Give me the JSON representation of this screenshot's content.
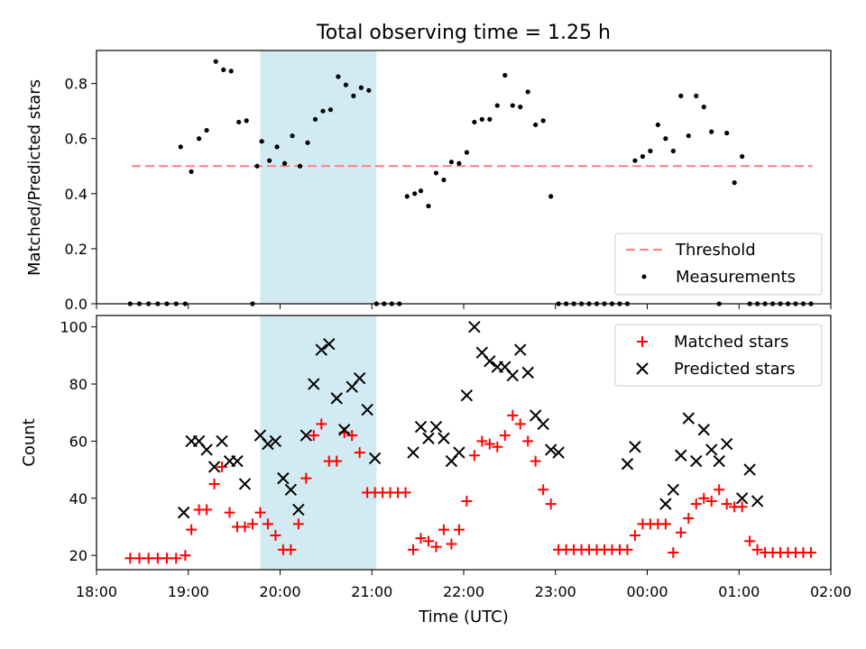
{
  "title": "Total observing time = 1.25 h",
  "chart_data": [
    {
      "type": "scatter",
      "panel": "top",
      "title": "Total observing time = 1.25 h",
      "xlabel": "",
      "ylabel": "Matched/Predicted stars",
      "xlim": [
        "18:00",
        "02:00"
      ],
      "ylim": [
        0,
        0.92
      ],
      "yticks": [
        "0.0",
        "0.2",
        "0.4",
        "0.6",
        "0.8"
      ],
      "yticks_values": [
        0,
        0.2,
        0.4,
        0.6,
        0.8
      ],
      "shaded_region": {
        "start": "19:47",
        "end": "21:03",
        "color": "#add8e6"
      },
      "threshold": {
        "name": "Threshold",
        "value": 0.5,
        "start": "18:23",
        "end": "01:48",
        "color": "#ff7f7f",
        "style": "dashed"
      },
      "series": [
        {
          "name": "Measurements",
          "color": "#000000",
          "marker": "dot",
          "x": [
            "18:22",
            "18:28",
            "18:34",
            "18:40",
            "18:46",
            "18:52",
            "18:58",
            "18:55",
            "19:02",
            "19:07",
            "19:12",
            "19:18",
            "19:23",
            "19:28",
            "19:33",
            "19:38",
            "19:42",
            "19:45",
            "19:48",
            "19:53",
            "19:58",
            "20:03",
            "20:08",
            "20:13",
            "20:18",
            "20:23",
            "20:28",
            "20:33",
            "20:38",
            "20:43",
            "20:48",
            "20:53",
            "20:58",
            "21:03",
            "21:08",
            "21:13",
            "21:18",
            "21:23",
            "21:28",
            "21:32",
            "21:37",
            "21:42",
            "21:47",
            "21:52",
            "21:57",
            "22:02",
            "22:07",
            "22:12",
            "22:17",
            "22:22",
            "22:27",
            "22:32",
            "22:37",
            "22:42",
            "22:47",
            "22:52",
            "22:57",
            "23:02",
            "23:07",
            "23:12",
            "23:17",
            "23:22",
            "23:27",
            "23:32",
            "23:37",
            "23:42",
            "23:47",
            "23:52",
            "23:57",
            "00:02",
            "00:07",
            "00:12",
            "00:17",
            "00:22",
            "00:27",
            "00:32",
            "00:37",
            "00:42",
            "00:47",
            "00:52",
            "00:57",
            "01:02",
            "01:07",
            "01:12",
            "01:17",
            "01:22",
            "01:27",
            "01:32",
            "01:37",
            "01:42",
            "01:47"
          ],
          "y": [
            0,
            0,
            0,
            0,
            0,
            0,
            0,
            0.57,
            0.48,
            0.6,
            0.63,
            0.88,
            0.85,
            0.845,
            0.66,
            0.665,
            0,
            0.5,
            0.59,
            0.52,
            0.57,
            0.51,
            0.61,
            0.5,
            0.585,
            0.67,
            0.7,
            0.705,
            0.825,
            0.795,
            0.755,
            0.785,
            0.775,
            0,
            0,
            0,
            0,
            0.39,
            0.4,
            0.41,
            0.355,
            0.475,
            0.45,
            0.515,
            0.51,
            0.55,
            0.66,
            0.67,
            0.67,
            0.72,
            0.83,
            0.72,
            0.715,
            0.77,
            0.65,
            0.665,
            0.39,
            0,
            0,
            0,
            0,
            0,
            0,
            0,
            0,
            0,
            0,
            0.52,
            0.535,
            0.555,
            0.65,
            0.6,
            0.555,
            0.755,
            0.61,
            0.755,
            0.715,
            0.625,
            0,
            0.62,
            0.44,
            0.535,
            0,
            0,
            0,
            0,
            0,
            0,
            0,
            0,
            0
          ]
        }
      ],
      "legend": {
        "position": "lower right",
        "entries": [
          "Threshold",
          "Measurements"
        ]
      }
    },
    {
      "type": "scatter",
      "panel": "bottom",
      "xlabel": "Time (UTC)",
      "ylabel": "Count",
      "xlim": [
        "18:00",
        "02:00"
      ],
      "xticks": [
        "18:00",
        "19:00",
        "20:00",
        "21:00",
        "22:00",
        "23:00",
        "00:00",
        "01:00",
        "02:00"
      ],
      "ylim": [
        15,
        104
      ],
      "yticks": [
        "20",
        "40",
        "60",
        "80",
        "100"
      ],
      "yticks_values": [
        20,
        40,
        60,
        80,
        100
      ],
      "shaded_region": {
        "start": "19:47",
        "end": "21:03",
        "color": "#add8e6"
      },
      "series": [
        {
          "name": "Matched stars",
          "color": "#ff0000",
          "marker": "plus",
          "x": [
            "18:22",
            "18:28",
            "18:34",
            "18:40",
            "18:46",
            "18:52",
            "18:58",
            "19:02",
            "19:07",
            "19:12",
            "19:17",
            "19:22",
            "19:27",
            "19:32",
            "19:37",
            "19:42",
            "19:47",
            "19:52",
            "19:57",
            "20:02",
            "20:07",
            "20:12",
            "20:17",
            "20:22",
            "20:27",
            "20:32",
            "20:37",
            "20:42",
            "20:47",
            "20:52",
            "20:57",
            "21:02",
            "21:07",
            "21:12",
            "21:17",
            "21:22",
            "21:27",
            "21:32",
            "21:37",
            "21:42",
            "21:47",
            "21:52",
            "21:57",
            "22:02",
            "22:07",
            "22:12",
            "22:17",
            "22:22",
            "22:27",
            "22:32",
            "22:37",
            "22:42",
            "22:47",
            "22:52",
            "22:57",
            "23:02",
            "23:07",
            "23:12",
            "23:17",
            "23:22",
            "23:27",
            "23:32",
            "23:37",
            "23:42",
            "23:47",
            "23:52",
            "23:57",
            "00:02",
            "00:07",
            "00:12",
            "00:17",
            "00:22",
            "00:27",
            "00:32",
            "00:37",
            "00:42",
            "00:47",
            "00:52",
            "00:57",
            "01:02",
            "01:07",
            "01:12",
            "01:17",
            "01:22",
            "01:27",
            "01:32",
            "01:37",
            "01:42",
            "01:47"
          ],
          "y": [
            19,
            19,
            19,
            19,
            19,
            19,
            20,
            29,
            36,
            36,
            45,
            51,
            35,
            30,
            30,
            31,
            35,
            31,
            27,
            22,
            22,
            31,
            47,
            62,
            66,
            53,
            53,
            63,
            62,
            56,
            42,
            42,
            42,
            42,
            42,
            42,
            22,
            26,
            25,
            23,
            29,
            24,
            29,
            39,
            55,
            60,
            59,
            58,
            62,
            69,
            66,
            60,
            53,
            43,
            38,
            22,
            22,
            22,
            22,
            22,
            22,
            22,
            22,
            22,
            22,
            27,
            31,
            31,
            31,
            31,
            21,
            28,
            33,
            38,
            40,
            39,
            43,
            38,
            37,
            37,
            25,
            22,
            21,
            21,
            21,
            21,
            21,
            21,
            21
          ]
        },
        {
          "name": "Predicted stars",
          "color": "#000000",
          "marker": "x",
          "x": [
            "18:57",
            "19:02",
            "19:07",
            "19:12",
            "19:17",
            "19:22",
            "19:27",
            "19:32",
            "19:37",
            "19:47",
            "19:52",
            "19:57",
            "20:02",
            "20:07",
            "20:12",
            "20:17",
            "20:22",
            "20:27",
            "20:32",
            "20:37",
            "20:42",
            "20:47",
            "20:52",
            "20:57",
            "21:02",
            "21:27",
            "21:32",
            "21:37",
            "21:42",
            "21:47",
            "21:52",
            "21:57",
            "22:02",
            "22:07",
            "22:12",
            "22:17",
            "22:22",
            "22:27",
            "22:32",
            "22:37",
            "22:42",
            "22:47",
            "22:52",
            "22:57",
            "23:02",
            "23:47",
            "23:52",
            "00:12",
            "00:17",
            "00:22",
            "00:27",
            "00:32",
            "00:37",
            "00:42",
            "00:47",
            "00:52",
            "01:02",
            "01:07",
            "01:12"
          ],
          "y": [
            35,
            60,
            60,
            57,
            51,
            60,
            53,
            53,
            45,
            62,
            59,
            60,
            47,
            43,
            36,
            62,
            80,
            92,
            94,
            75,
            64,
            79,
            82,
            71,
            54,
            56,
            65,
            61,
            65,
            61,
            53,
            56,
            76,
            100,
            91,
            88,
            86,
            86,
            83,
            92,
            84,
            69,
            66,
            57,
            56,
            52,
            58,
            38,
            43,
            55,
            68,
            53,
            64,
            57,
            53,
            59,
            40,
            50,
            39
          ]
        }
      ],
      "legend": {
        "position": "upper right",
        "entries": [
          "Matched stars",
          "Predicted stars"
        ]
      }
    }
  ]
}
